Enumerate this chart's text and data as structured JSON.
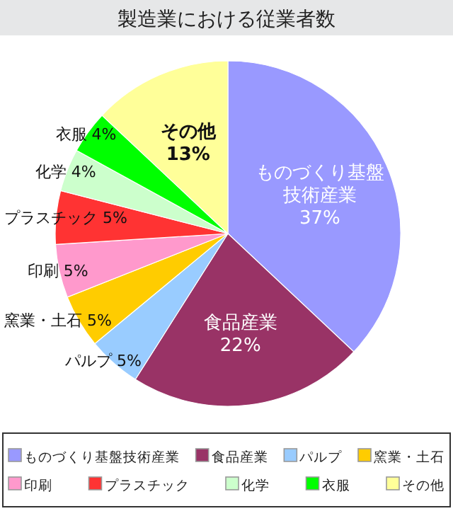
{
  "chart_data": {
    "type": "pie",
    "title": "製造業における従業者数",
    "categories": [
      "ものづくり基盤技術産業",
      "食品産業",
      "パルプ",
      "窯業・土石",
      "印刷",
      "プラスチック",
      "化学",
      "衣服",
      "その他"
    ],
    "values": [
      37,
      22,
      5,
      5,
      5,
      5,
      4,
      4,
      13
    ],
    "value_labels": [
      "37%",
      "22%",
      "5%",
      "5%",
      "5%",
      "5%",
      "4%",
      "4%",
      "13%"
    ],
    "colors": [
      "#9999ff",
      "#993366",
      "#99ccff",
      "#ffcc00",
      "#ff99cc",
      "#ff3333",
      "#ccffcc",
      "#00ff00",
      "#ffff99"
    ],
    "legend": "bottom"
  }
}
